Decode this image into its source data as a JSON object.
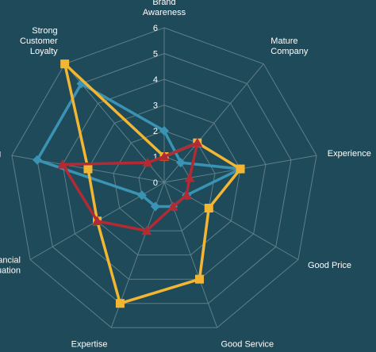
{
  "chart_data": {
    "type": "radar",
    "axes": [
      {
        "label_lines": [
          "Brand",
          "Awareness"
        ]
      },
      {
        "label_lines": [
          "Mature",
          "Company"
        ]
      },
      {
        "label_lines": [
          "Experience"
        ]
      },
      {
        "label_lines": [
          "Good Price"
        ]
      },
      {
        "label_lines": [
          "Good Service"
        ]
      },
      {
        "label_lines": [
          "Expertise"
        ]
      },
      {
        "label_lines": [
          "ancial",
          "uation"
        ]
      },
      {
        "label_lines": [
          "g"
        ]
      },
      {
        "label_lines": [
          "Strong",
          "Customer",
          "Loyalty"
        ]
      }
    ],
    "r_ticks": [
      "0",
      "1",
      "2",
      "3",
      "4",
      "5",
      "6"
    ],
    "rlim": [
      0,
      6
    ],
    "grid": true,
    "legend": "none",
    "series": [
      {
        "color": "#3a93b3",
        "marker": "diamond",
        "values": [
          2,
          1,
          3,
          1,
          1,
          1,
          1,
          5,
          5
        ]
      },
      {
        "color": "#f2b632",
        "marker": "square",
        "values": [
          1,
          2,
          3,
          2,
          4,
          5,
          3,
          3,
          6
        ]
      },
      {
        "color": "#b22a34",
        "marker": "triangle",
        "values": [
          1,
          2,
          1,
          1,
          1,
          2,
          3,
          4,
          1
        ]
      }
    ]
  }
}
